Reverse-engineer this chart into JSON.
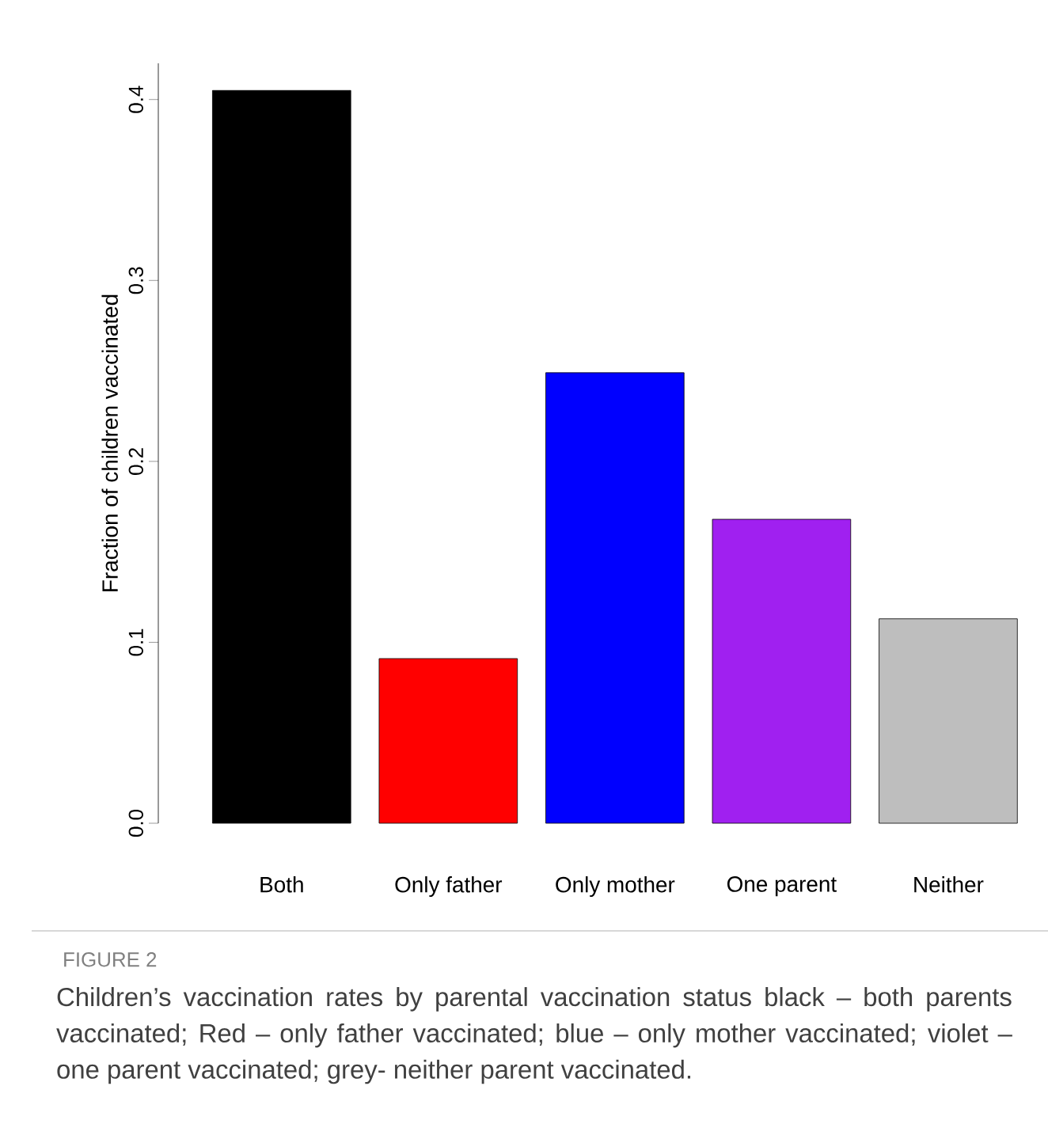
{
  "chart_data": {
    "type": "bar",
    "ylabel": "Fraction of children vaccinated",
    "categories": [
      "Both",
      "Only father",
      "Only mother",
      "One parent",
      "Neither"
    ],
    "values": [
      0.405,
      0.091,
      0.249,
      0.168,
      0.113
    ],
    "colors": [
      "#000000",
      "#ff0000",
      "#0000ff",
      "#a020f0",
      "#bebebe"
    ],
    "ylim": [
      0,
      0.42
    ],
    "yticks": [
      {
        "value": 0,
        "label": "0.0"
      },
      0.1,
      0.2,
      0.3,
      0.4
    ],
    "grid": false,
    "annotations": [
      "FIGURE 2",
      "Children’s vaccination rates by parental vaccination status black – both parents vaccinated; Red – only father vaccinated; blue – only mother vaccinated; violet – one parent vaccinated; grey- neither parent vaccinated."
    ]
  }
}
